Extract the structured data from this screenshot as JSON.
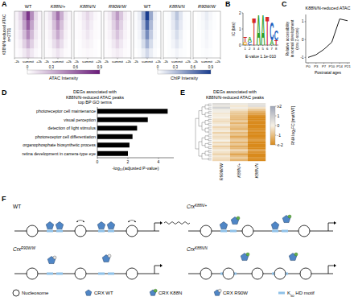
{
  "panel_labels": [
    "A",
    "B",
    "C",
    "D",
    "E",
    "F"
  ],
  "chart_data": [
    {
      "type": "heatmap",
      "ylabel": "K88N/N-reduced ATAC",
      "annotation": "n=2731",
      "xlim": [
        -2000,
        2000
      ],
      "xticks": [
        {
          "value": -2000,
          "label": "-2k"
        },
        {
          "value": 0,
          "label": "summit"
        },
        {
          "value": 2000,
          "label": "+2k"
        }
      ],
      "tracks": [
        {
          "name": "WT",
          "color": "#6a1b7a",
          "cells": [
            [
              0.05,
              0.15,
              0.45,
              0.8,
              0.45,
              0.15,
              0.05
            ],
            [
              0.04,
              0.12,
              0.36,
              0.64,
              0.36,
              0.12,
              0.04
            ],
            [
              0.03,
              0.09,
              0.27,
              0.48,
              0.27,
              0.09,
              0.03
            ],
            [
              0.02,
              0.06,
              0.18,
              0.32,
              0.18,
              0.06,
              0.02
            ],
            [
              0.01,
              0.03,
              0.09,
              0.16,
              0.09,
              0.03,
              0.01
            ]
          ]
        },
        {
          "name": "K88N/+",
          "color": "#6a1b7a",
          "cells": [
            [
              0.04,
              0.1,
              0.32,
              0.56,
              0.32,
              0.1,
              0.04
            ],
            [
              0.03,
              0.08,
              0.25,
              0.45,
              0.25,
              0.08,
              0.03
            ],
            [
              0.02,
              0.06,
              0.19,
              0.34,
              0.19,
              0.06,
              0.02
            ],
            [
              0.01,
              0.04,
              0.13,
              0.22,
              0.13,
              0.04,
              0.01
            ],
            [
              0.01,
              0.02,
              0.06,
              0.11,
              0.06,
              0.02,
              0.01
            ]
          ]
        },
        {
          "name": "K88N/N",
          "color": "#6a1b7a",
          "cells": [
            [
              0.01,
              0.03,
              0.09,
              0.16,
              0.09,
              0.03,
              0.01
            ],
            [
              0.01,
              0.02,
              0.07,
              0.13,
              0.07,
              0.02,
              0.01
            ],
            [
              0.01,
              0.02,
              0.05,
              0.1,
              0.05,
              0.02,
              0.01
            ],
            [
              0,
              0.01,
              0.04,
              0.06,
              0.04,
              0.01,
              0
            ],
            [
              0,
              0.01,
              0.02,
              0.03,
              0.02,
              0.01,
              0
            ]
          ]
        },
        {
          "name": "R90W/W",
          "color": "#6a1b7a",
          "cells": [
            [
              0.03,
              0.08,
              0.23,
              0.4,
              0.23,
              0.08,
              0.03
            ],
            [
              0.02,
              0.06,
              0.18,
              0.32,
              0.18,
              0.06,
              0.02
            ],
            [
              0.02,
              0.05,
              0.14,
              0.24,
              0.14,
              0.05,
              0.02
            ],
            [
              0.01,
              0.03,
              0.09,
              0.16,
              0.09,
              0.03,
              0.01
            ],
            [
              0.01,
              0.02,
              0.05,
              0.08,
              0.05,
              0.02,
              0.01
            ]
          ]
        },
        {
          "name": "WT",
          "color": "#1a3d8f",
          "cells": [
            [
              0.02,
              0.08,
              0.4,
              0.9,
              0.4,
              0.08,
              0.02
            ],
            [
              0.02,
              0.06,
              0.32,
              0.72,
              0.32,
              0.06,
              0.02
            ],
            [
              0.01,
              0.05,
              0.24,
              0.54,
              0.24,
              0.05,
              0.01
            ],
            [
              0.01,
              0.03,
              0.16,
              0.36,
              0.16,
              0.03,
              0.01
            ],
            [
              0,
              0.02,
              0.08,
              0.18,
              0.08,
              0.02,
              0
            ]
          ]
        },
        {
          "name": "K88N/N",
          "color": "#1a3d8f",
          "cells": [
            [
              0.01,
              0.02,
              0.12,
              0.27,
              0.12,
              0.02,
              0.01
            ],
            [
              0.01,
              0.02,
              0.1,
              0.22,
              0.1,
              0.02,
              0.01
            ],
            [
              0,
              0.01,
              0.07,
              0.16,
              0.07,
              0.01,
              0
            ],
            [
              0,
              0.01,
              0.05,
              0.11,
              0.05,
              0.01,
              0
            ],
            [
              0,
              0.01,
              0.02,
              0.05,
              0.02,
              0.01,
              0
            ]
          ]
        },
        {
          "name": "R90W/W",
          "color": "#1a3d8f",
          "cells": [
            [
              0,
              0.01,
              0.04,
              0.09,
              0.04,
              0.01,
              0
            ],
            [
              0,
              0.01,
              0.03,
              0.07,
              0.03,
              0.01,
              0
            ],
            [
              0,
              0,
              0.02,
              0.05,
              0.02,
              0,
              0
            ],
            [
              0,
              0,
              0.02,
              0.04,
              0.02,
              0,
              0
            ],
            [
              0,
              0,
              0.01,
              0.02,
              0.01,
              0,
              0
            ]
          ]
        }
      ],
      "colorbars": [
        {
          "label": "ATAC Intensity",
          "color": "#6a1b7a",
          "range": [
            0,
            0.9
          ],
          "ticks": [
            0,
            0.3,
            0.6,
            0.9
          ]
        },
        {
          "label": "ChIP Intensity",
          "color": "#1a3d8f",
          "range": [
            0,
            0.9
          ],
          "ticks": [
            0,
            0.3,
            0.6,
            0.9
          ]
        }
      ]
    },
    {
      "type": "logo",
      "ylabel": "IC (bits)",
      "ylim": [
        0,
        2
      ],
      "yticks": [
        0,
        1,
        2
      ],
      "xticks": [
        1,
        2,
        3,
        4,
        5,
        6,
        7,
        8
      ],
      "annotation": "E-value 1.1e-010",
      "positions": [
        [
          {
            "letter": "G",
            "bits": 0.2,
            "color": "#f0a000"
          },
          {
            "letter": "T",
            "bits": 0.3,
            "color": "#d62728"
          }
        ],
        [
          {
            "letter": "C",
            "bits": 0.2,
            "color": "#1f5fbf"
          },
          {
            "letter": "A",
            "bits": 0.3,
            "color": "#2ca02c"
          }
        ],
        [
          {
            "letter": "T",
            "bits": 1.7,
            "color": "#d62728"
          }
        ],
        [
          {
            "letter": "A",
            "bits": 1.9,
            "color": "#2ca02c"
          }
        ],
        [
          {
            "letter": "A",
            "bits": 1.9,
            "color": "#2ca02c"
          }
        ],
        [
          {
            "letter": "T",
            "bits": 1.8,
            "color": "#d62728"
          }
        ],
        [
          {
            "letter": "A",
            "bits": 0.3,
            "color": "#2ca02c"
          },
          {
            "letter": "C",
            "bits": 1.1,
            "color": "#1f5fbf"
          }
        ],
        [
          {
            "letter": "T",
            "bits": 0.3,
            "color": "#d62728"
          },
          {
            "letter": "C",
            "bits": 0.6,
            "color": "#1f5fbf"
          }
        ]
      ]
    },
    {
      "type": "line",
      "title": "K88N/N-reduced ATAC",
      "xlabel": "Postnatal ages",
      "ylabel": [
        "Relative accessibility",
        "in normal development",
        "(row Z-score)"
      ],
      "categories": [
        "P0",
        "P3",
        "P7",
        "P10",
        "P14",
        "P21"
      ],
      "values": [
        -1.0,
        -0.85,
        -0.55,
        -0.15,
        1.15,
        1.05
      ],
      "ylim": [
        -1.3,
        1.4
      ],
      "yticks": [
        -1,
        0,
        1
      ],
      "color": "#000000"
    },
    {
      "type": "bar",
      "orientation": "horizontal",
      "title": [
        "DEGs associated with",
        "K88N/N-reduced ATAC peaks",
        "top BP GO terms"
      ],
      "xlabel": "-log₁₀(adjusted P-value)",
      "categories": [
        "photoreceptor cell maintenance",
        "visual perception",
        "detection of light stimulus",
        "photoreceptor cell differentiation",
        "organophosphate biosynthetic process",
        "retina development in camera-type eye"
      ],
      "values": [
        4.6,
        3.3,
        2.6,
        2.3,
        2.1,
        2.0
      ],
      "xlim": [
        0,
        5
      ],
      "xticks": [
        0,
        2,
        4
      ],
      "color": "#000000"
    },
    {
      "type": "heatmap",
      "title": [
        "DEGs associated with",
        "K88N/N-reduced ATAC peaks"
      ],
      "columns": [
        "R90W/W",
        "K88N/+",
        "K88N/N"
      ],
      "cells": [
        [
          0.6,
          0.2,
          0.4
        ],
        [
          0.3,
          -0.2,
          0.5
        ],
        [
          0.8,
          0.1,
          -0.3
        ],
        [
          0.2,
          -0.3,
          -0.8
        ],
        [
          0.1,
          -0.6,
          -1.2
        ],
        [
          -0.2,
          -0.8,
          -1.5
        ],
        [
          -0.1,
          -0.9,
          -1.8
        ],
        [
          0.0,
          -1.0,
          -2.0
        ],
        [
          -0.3,
          -1.1,
          -2.2
        ],
        [
          -0.4,
          -0.7,
          -1.9
        ],
        [
          -0.2,
          -1.2,
          -2.5
        ],
        [
          0.1,
          -0.8,
          -2.1
        ],
        [
          -0.5,
          -1.0,
          -2.3
        ],
        [
          -0.3,
          -1.3,
          -2.4
        ],
        [
          -0.1,
          -0.6,
          -1.7
        ],
        [
          -0.6,
          -1.1,
          -2.2
        ],
        [
          -0.2,
          -0.9,
          -2.0
        ],
        [
          -0.4,
          -1.4,
          -2.6
        ],
        [
          -0.3,
          -1.0,
          -1.9
        ],
        [
          0.0,
          -0.7,
          -1.6
        ],
        [
          -0.5,
          -1.2,
          -2.3
        ],
        [
          -0.2,
          -0.8,
          -2.0
        ],
        [
          -0.7,
          -1.3,
          -2.5
        ],
        [
          -0.4,
          -1.1,
          -2.1
        ],
        [
          -0.1,
          -0.5,
          -1.4
        ],
        [
          -0.3,
          -0.9,
          -1.8
        ],
        [
          -0.6,
          -1.5,
          -2.7
        ],
        [
          -0.2,
          -1.0,
          -2.2
        ],
        [
          -0.4,
          -0.8,
          -1.9
        ],
        [
          -0.5,
          -1.2,
          -2.4
        ]
      ],
      "colorbar": {
        "label": "RNA log₂FC [mut/WT]",
        "range": [
          -2,
          2
        ],
        "ticks": [
          {
            "value": 2,
            "label": "≥2"
          },
          1,
          0,
          -1,
          {
            "value": -2,
            "label": "≤-2"
          }
        ],
        "colors": [
          "#d98a1c",
          "#f6f1e6",
          "#9fa6b8"
        ]
      }
    }
  ],
  "diagram": {
    "panels": [
      {
        "genotype": {
          "text": "WT"
        }
      },
      {
        "genotype": {
          "text": "Crx",
          "sup": "K88N/+"
        }
      },
      {
        "genotype": {
          "text": "Crx",
          "sup": "R90W/W"
        }
      },
      {
        "genotype": {
          "text": "Crx",
          "sup": "K88N/N"
        }
      }
    ],
    "legend": [
      {
        "text": "Nucleosome"
      },
      {
        "text": "CRX WT"
      },
      {
        "text": "CRX K88N"
      },
      {
        "text": "CRX R90W"
      },
      {
        "text": "K",
        "sub": "50",
        "after": " HD motif"
      }
    ]
  }
}
